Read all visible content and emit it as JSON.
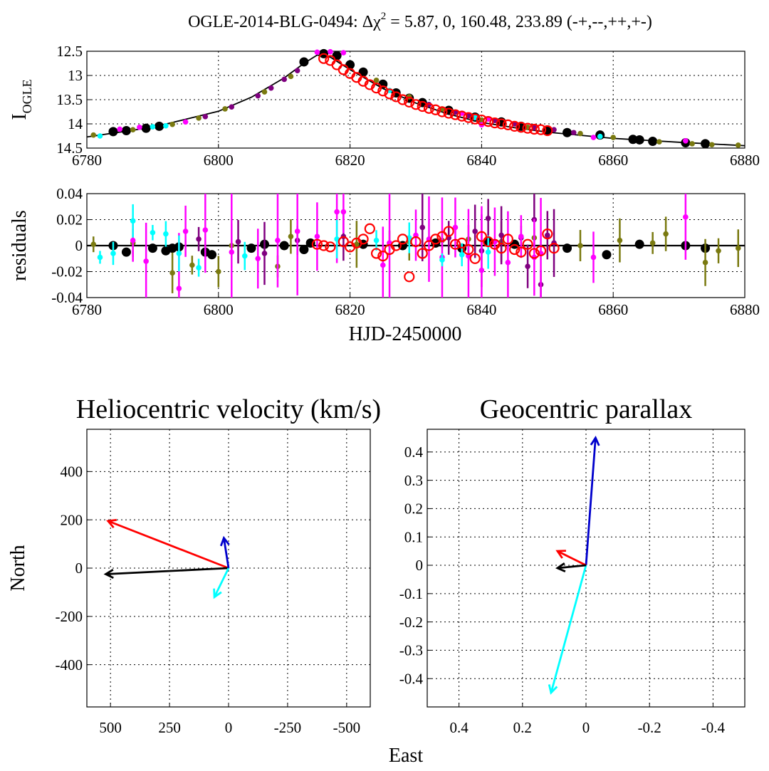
{
  "figure": {
    "title_prefix": "OGLE-2014-BLG-0494: Δχ",
    "title_sup": "2",
    "title_suffix": " = 5.87, 0, 160.48, 233.89 (-+,--,++,+-)"
  },
  "chart_data": [
    {
      "type": "scatter",
      "ylabel_main": "I",
      "ylabel_sub": "OGLE",
      "xlim": [
        6780,
        6880
      ],
      "ylim": [
        14.5,
        12.5
      ],
      "y_inverted": true,
      "x_ticks": [
        6780,
        6800,
        6820,
        6840,
        6860,
        6880
      ],
      "y_ticks": [
        12.5,
        13,
        13.5,
        14,
        14.5
      ],
      "grid": true,
      "model_curve": {
        "color": "#000000",
        "x": [
          6780,
          6790,
          6800,
          6805,
          6810,
          6813,
          6815,
          6817,
          6820,
          6825,
          6830,
          6835,
          6840,
          6845,
          6850,
          6860,
          6870,
          6880
        ],
        "y": [
          14.27,
          14.07,
          13.74,
          13.45,
          13.05,
          12.75,
          12.58,
          12.62,
          12.88,
          13.27,
          13.57,
          13.8,
          13.97,
          14.08,
          14.17,
          14.3,
          14.38,
          14.45
        ]
      },
      "series": [
        {
          "color": "#000000",
          "marker": "filled-large",
          "x": [
            6784,
            6786,
            6789,
            6791,
            6813,
            6816,
            6818,
            6820,
            6822,
            6825,
            6827,
            6829,
            6831,
            6835,
            6839,
            6843,
            6846,
            6850,
            6853,
            6858,
            6863,
            6864,
            6866,
            6871,
            6874
          ],
          "y": [
            14.16,
            14.14,
            14.09,
            14.05,
            12.72,
            12.55,
            12.59,
            12.78,
            12.93,
            13.18,
            13.36,
            13.47,
            13.56,
            13.72,
            13.86,
            13.96,
            14.05,
            14.13,
            14.18,
            14.23,
            14.32,
            14.33,
            14.36,
            14.39,
            14.41
          ]
        },
        {
          "color": "#7a7a10",
          "marker": "filled-small",
          "x": [
            6781,
            6787,
            6793,
            6797,
            6801,
            6807,
            6811,
            6824,
            6829,
            6834,
            6840,
            6847,
            6855,
            6860,
            6867,
            6872,
            6875,
            6879
          ],
          "y": [
            14.23,
            14.12,
            14.01,
            13.88,
            13.69,
            13.34,
            13.02,
            13.1,
            13.44,
            13.69,
            13.92,
            14.07,
            14.2,
            14.28,
            14.37,
            14.41,
            14.43,
            14.44
          ]
        },
        {
          "color": "#800080",
          "marker": "filled-small",
          "x": [
            6798,
            6802,
            6806,
            6808,
            6810,
            6812,
            6832,
            6836,
            6838,
            6842,
            6845,
            6848,
            6851,
            6854
          ],
          "y": [
            13.85,
            13.65,
            13.42,
            13.26,
            13.08,
            12.9,
            13.6,
            13.76,
            13.83,
            13.93,
            14.0,
            14.08,
            14.12,
            14.18
          ]
        },
        {
          "color": "#ff00ff",
          "marker": "filled-small",
          "x": [
            6785,
            6788,
            6795,
            6815,
            6817,
            6819,
            6837,
            6840,
            6841,
            6857,
            6871
          ],
          "y": [
            14.11,
            14.07,
            13.96,
            12.52,
            12.51,
            12.53,
            13.78,
            14.02,
            13.9,
            14.28,
            14.35
          ]
        },
        {
          "color": "#00ffff",
          "marker": "filled-small",
          "x": [
            6782,
            6790,
            6792,
            6826,
            6839,
            6858
          ],
          "y": [
            14.25,
            14.06,
            14.04,
            13.31,
            13.87,
            14.26
          ]
        },
        {
          "color": "#ff0000",
          "marker": "open-large",
          "x": [
            6816,
            6817,
            6818,
            6819,
            6820,
            6821,
            6822,
            6823,
            6824,
            6825,
            6826,
            6827,
            6828,
            6829,
            6830,
            6831,
            6832,
            6833,
            6834,
            6835,
            6836,
            6837,
            6838,
            6839,
            6840,
            6841,
            6842,
            6843,
            6844,
            6845,
            6846,
            6847,
            6848,
            6849,
            6850
          ],
          "y": [
            12.65,
            12.69,
            12.78,
            12.88,
            12.96,
            13.04,
            13.12,
            13.19,
            13.26,
            13.32,
            13.38,
            13.44,
            13.5,
            13.55,
            13.6,
            13.64,
            13.68,
            13.71,
            13.75,
            13.78,
            13.81,
            13.84,
            13.87,
            13.9,
            13.92,
            13.95,
            13.98,
            14.0,
            14.02,
            14.05,
            14.07,
            14.09,
            14.11,
            14.12,
            14.14
          ]
        }
      ]
    },
    {
      "type": "scatter",
      "ylabel": "residuals",
      "xlabel": "HJD-2450000",
      "xlim": [
        6780,
        6880
      ],
      "ylim": [
        -0.04,
        0.04
      ],
      "x_ticks": [
        6780,
        6800,
        6820,
        6840,
        6860,
        6880
      ],
      "y_ticks": [
        0.04,
        0.02,
        0,
        -0.02,
        -0.04
      ],
      "y_tick_labels": [
        "0.04",
        "0.02",
        "0",
        "-0.02",
        "-0.04"
      ],
      "grid": true,
      "zero_line": true,
      "series": [
        {
          "color": "#000000",
          "marker": "filled-large",
          "x": [
            6784,
            6786,
            6790,
            6792,
            6793,
            6794,
            6798,
            6799,
            6805,
            6807,
            6810,
            6813,
            6814,
            6822,
            6828,
            6833,
            6837,
            6841,
            6845,
            6853,
            6859,
            6864,
            6871,
            6874
          ],
          "y": [
            0.0,
            -0.005,
            -0.002,
            -0.004,
            -0.002,
            -0.001,
            -0.005,
            -0.007,
            -0.002,
            0.001,
            0.0,
            -0.003,
            0.002,
            0.001,
            0.0,
            0.002,
            -0.002,
            0.003,
            0.001,
            -0.002,
            -0.007,
            0.001,
            0.0,
            -0.002
          ]
        },
        {
          "color": "#7a7a10",
          "marker": "filled-small",
          "x": [
            6781,
            6787,
            6793,
            6796,
            6800,
            6802,
            6809,
            6811,
            6821,
            6826,
            6829,
            6834,
            6838,
            6843,
            6848,
            6855,
            6861,
            6866,
            6868,
            6874,
            6876,
            6879
          ],
          "y": [
            0.001,
            0.002,
            -0.021,
            -0.015,
            -0.02,
            0.0,
            -0.016,
            0.007,
            0.001,
            0.002,
            0.003,
            0.004,
            0.005,
            0.003,
            0.006,
            0.0,
            0.004,
            0.002,
            0.009,
            -0.013,
            -0.004,
            -0.002
          ]
        },
        {
          "color": "#800080",
          "marker": "filled-small",
          "x": [
            6797,
            6803,
            6807,
            6812,
            6819,
            6831,
            6835,
            6839,
            6840,
            6841,
            6843,
            6846,
            6847,
            6848,
            6849,
            6850,
            6851
          ],
          "y": [
            0.005,
            0.003,
            -0.006,
            0.004,
            0.007,
            0.014,
            0.006,
            0.011,
            -0.004,
            0.021,
            0.008,
            0.006,
            -0.016,
            0.02,
            -0.03,
            0.008,
            0.002
          ]
        },
        {
          "color": "#ff00ff",
          "marker": "filled-small",
          "x": [
            6787,
            6789,
            6794,
            6795,
            6798,
            6802,
            6806,
            6809,
            6812,
            6815,
            6818,
            6819,
            6825,
            6826,
            6830,
            6832,
            6834,
            6836,
            6838,
            6840,
            6842,
            6844,
            6846,
            6848,
            6849,
            6857,
            6871
          ],
          "y": [
            0.004,
            -0.012,
            -0.033,
            0.011,
            0.012,
            -0.005,
            -0.01,
            0.004,
            0.011,
            0.007,
            0.026,
            0.026,
            -0.015,
            0.002,
            0.008,
            0.005,
            -0.009,
            0.014,
            -0.008,
            -0.019,
            0.003,
            -0.013,
            0.007,
            -0.009,
            -0.006,
            -0.009,
            0.022
          ]
        },
        {
          "color": "#00ffff",
          "marker": "filled-small",
          "x": [
            6782,
            6784,
            6787,
            6790,
            6792,
            6794,
            6797,
            6804,
            6818,
            6824,
            6829,
            6834,
            6837,
            6841
          ],
          "y": [
            -0.009,
            -0.006,
            0.019,
            0.01,
            0.009,
            -0.006,
            -0.017,
            -0.008,
            0.005,
            0.004,
            0.006,
            -0.011,
            -0.007,
            -0.005
          ]
        },
        {
          "color": "#ff0000",
          "marker": "open-large",
          "x": [
            6815,
            6816,
            6817,
            6819,
            6820,
            6821,
            6822,
            6823,
            6824,
            6825,
            6826,
            6827,
            6828,
            6829,
            6830,
            6831,
            6832,
            6833,
            6834,
            6835,
            6836,
            6837,
            6838,
            6839,
            6840,
            6841,
            6842,
            6843,
            6844,
            6845,
            6846,
            6847,
            6848,
            6849,
            6850,
            6851
          ],
          "y": [
            0.001,
            0.0,
            -0.001,
            0.003,
            -0.001,
            0.002,
            0.005,
            0.013,
            -0.006,
            -0.008,
            -0.003,
            0.0,
            0.005,
            -0.024,
            0.003,
            -0.006,
            0.0,
            0.005,
            0.007,
            0.011,
            0.001,
            0.002,
            -0.003,
            -0.01,
            0.007,
            0.003,
            0.001,
            -0.002,
            0.005,
            -0.003,
            -0.005,
            0.001,
            -0.006,
            -0.004,
            0.009,
            -0.002
          ]
        }
      ]
    },
    {
      "type": "line",
      "title": "Heliocentric velocity (km/s)",
      "ylabel": "North",
      "xlim": [
        600,
        -600
      ],
      "ylim": [
        -575,
        575
      ],
      "x_inverted": true,
      "x_ticks": [
        500,
        250,
        0,
        -250,
        -500
      ],
      "y_ticks": [
        400,
        200,
        0,
        -200,
        -400
      ],
      "grid": true,
      "series": [
        {
          "color": "#ff0000",
          "x": [
            0,
            510
          ],
          "y": [
            0,
            195
          ]
        },
        {
          "color": "#000000",
          "x": [
            0,
            520
          ],
          "y": [
            0,
            -25
          ]
        },
        {
          "color": "#0000cc",
          "x": [
            0,
            20
          ],
          "y": [
            0,
            125
          ]
        },
        {
          "color": "#00ffff",
          "x": [
            0,
            60
          ],
          "y": [
            0,
            -120
          ]
        }
      ]
    },
    {
      "type": "line",
      "title": "Geocentric parallax",
      "xlim": [
        0.5,
        -0.5
      ],
      "ylim": [
        -0.5,
        0.48
      ],
      "x_inverted": true,
      "x_ticks": [
        0.4,
        0.2,
        0,
        -0.2,
        -0.4
      ],
      "x_tick_labels": [
        "0.4",
        "0.2",
        "0",
        "-0.2",
        "-0.4"
      ],
      "y_ticks": [
        0.4,
        0.3,
        0.2,
        0.1,
        0,
        -0.1,
        -0.2,
        -0.3,
        -0.4
      ],
      "y_tick_labels": [
        "0.4",
        "0.3",
        "0.2",
        "0.1",
        "0",
        "-0.1",
        "-0.2",
        "-0.3",
        "-0.4"
      ],
      "grid": true,
      "series": [
        {
          "color": "#0000cc",
          "x": [
            0,
            -0.03
          ],
          "y": [
            0,
            0.45
          ]
        },
        {
          "color": "#00ffff",
          "x": [
            0,
            0.11
          ],
          "y": [
            0,
            -0.45
          ]
        },
        {
          "color": "#ff0000",
          "x": [
            0,
            0.09
          ],
          "y": [
            0,
            0.05
          ]
        },
        {
          "color": "#000000",
          "x": [
            0,
            0.09
          ],
          "y": [
            0,
            -0.01
          ]
        }
      ]
    }
  ],
  "shared_xlabel": "East"
}
